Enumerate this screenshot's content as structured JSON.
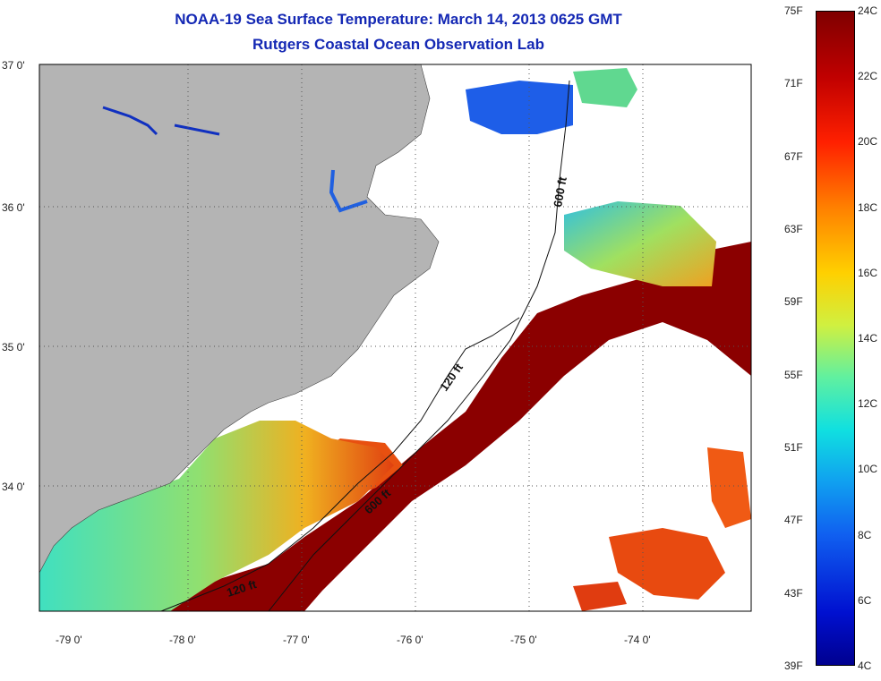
{
  "header": {
    "title": "NOAA-19 Sea Surface Temperature:  March 14, 2013 0625 GMT",
    "subtitle": "Rutgers Coastal Ocean Observation Lab"
  },
  "map": {
    "lat_ticks": [
      "37 0'",
      "36 0'",
      "35 0'",
      "34 0'"
    ],
    "lon_ticks": [
      "-79 0'",
      "-78 0'",
      "-77 0'",
      "-76 0'",
      "-75 0'",
      "-74 0'"
    ],
    "contour_labels": {
      "c120a": "120 ft",
      "c120b": "120 ft",
      "c600a": "600 ft",
      "c600b": "600 ft"
    },
    "colors": {
      "land": "#b4b4b4",
      "cloud": "#ffffff",
      "warm": "#8b0000"
    }
  },
  "colorbar": {
    "fahrenheit": [
      "75F",
      "71F",
      "67F",
      "63F",
      "59F",
      "55F",
      "51F",
      "47F",
      "43F",
      "39F"
    ],
    "celsius": [
      "24C",
      "22C",
      "20C",
      "18C",
      "16C",
      "14C",
      "12C",
      "10C",
      "8C",
      "6C",
      "4C"
    ],
    "range_f": [
      39,
      75
    ],
    "range_c": [
      4,
      24
    ]
  }
}
